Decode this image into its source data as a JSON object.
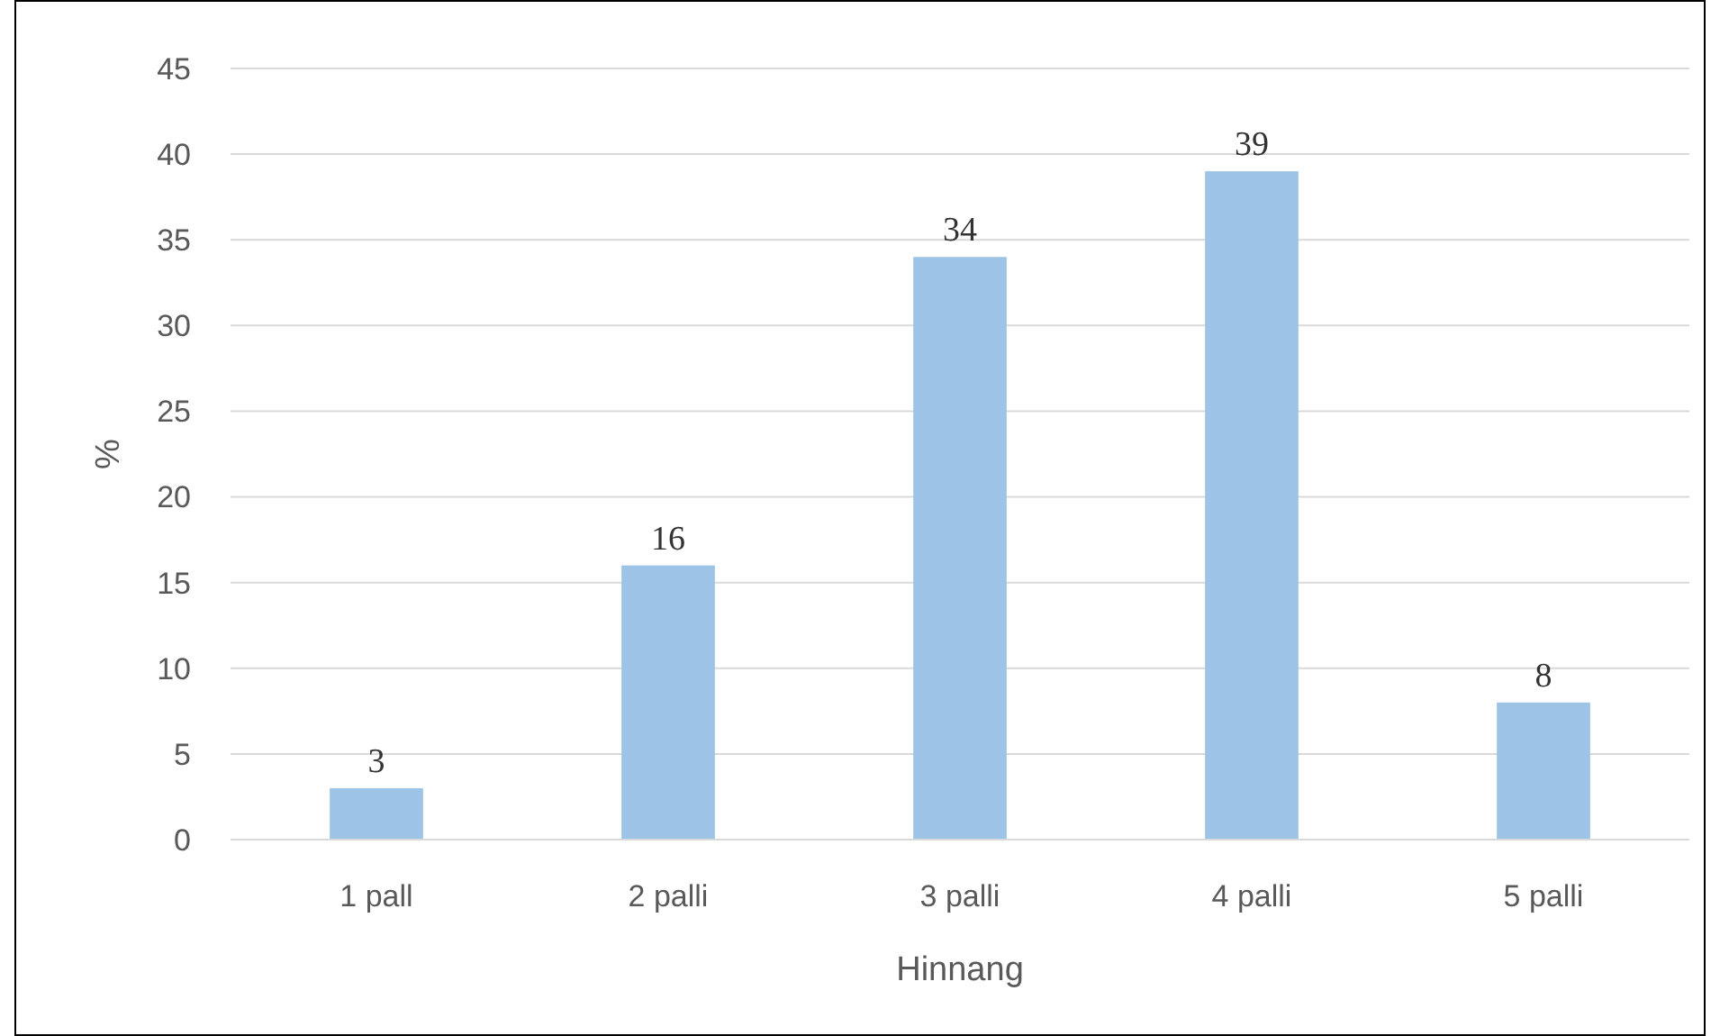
{
  "chart_data": {
    "type": "bar",
    "xlabel": "Hinnang",
    "ylabel": "%",
    "categories": [
      "1 pall",
      "2 palli",
      "3 palli",
      "4 palli",
      "5 palli"
    ],
    "values": [
      3,
      16,
      34,
      39,
      8
    ],
    "color": "#9dc3e6",
    "ylim": [
      0,
      45
    ],
    "yticks": [
      0,
      5,
      10,
      15,
      20,
      25,
      30,
      35,
      40,
      45
    ],
    "grid": "y",
    "data_labels": true
  }
}
